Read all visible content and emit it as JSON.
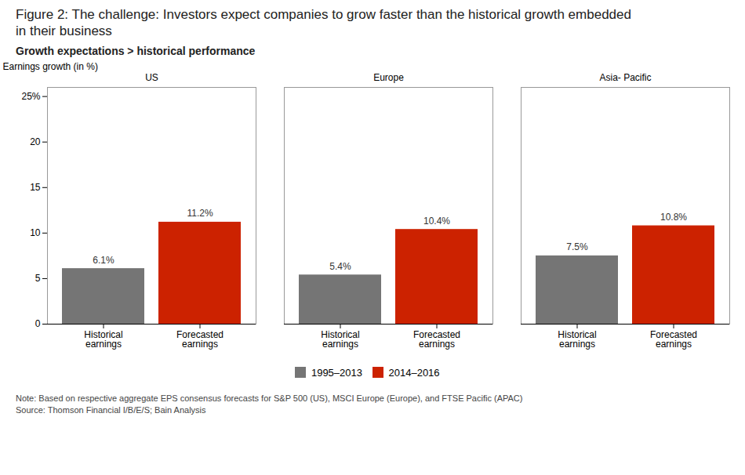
{
  "chart_data": {
    "type": "bar",
    "title": "Figure 2: The challenge: Investors expect companies to grow faster than the historical growth embedded\nin their business",
    "subtitle": "Growth expectations > historical performance",
    "ylabel": "Earnings growth (in %)",
    "categories": [
      "US",
      "Europe",
      "Asia- Pacific"
    ],
    "series": [
      {
        "name": "1995–2013",
        "label": "Historical\nearnings",
        "color": "#757575",
        "values": [
          6.1,
          5.4,
          7.5
        ],
        "value_labels": [
          "6.1%",
          "5.4%",
          "7.5%"
        ]
      },
      {
        "name": "2014–2016",
        "label": "Forecasted\nearnings",
        "color": "#cc2200",
        "values": [
          11.2,
          10.4,
          10.8
        ],
        "value_labels": [
          "11.2%",
          "10.4%",
          "10.8%"
        ]
      }
    ],
    "ylim": [
      0,
      26
    ],
    "yticks": [
      0,
      5,
      10,
      15,
      20,
      {
        "value": 25,
        "label": "25%"
      }
    ],
    "grid": false,
    "legend": "bottom",
    "data_labels": true,
    "notes": [
      "Note: Based on respective aggregate EPS consensus forecasts for S&P 500 (US), MSCI Europe (Europe), and FTSE Pacific (APAC)",
      "Source: Thomson Financial I/B/E/S; Bain Analysis"
    ]
  }
}
